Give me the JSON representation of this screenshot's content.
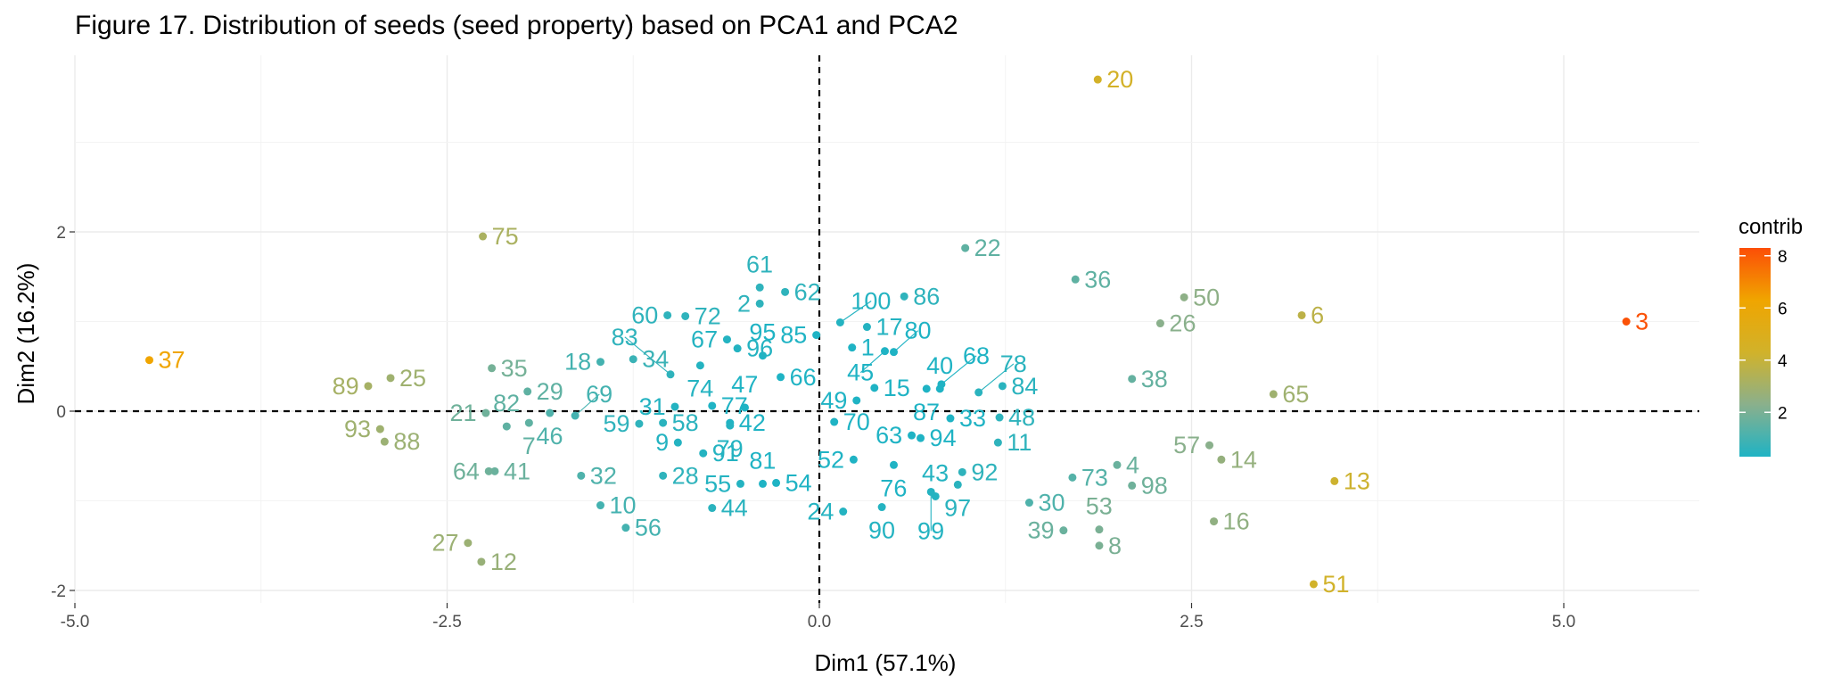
{
  "chart_data": {
    "type": "scatter",
    "title": "Figure 17. Distribution of seeds (seed property) based on PCA1 and PCA2",
    "xlabel": "Dim1 (57.1%)",
    "ylabel": "Dim2 (16.2%)",
    "xlim": [
      -5.0,
      5.9
    ],
    "ylim": [
      -2.2,
      3.6
    ],
    "xticks": [
      -5.0,
      -2.5,
      0.0,
      2.5,
      5.0
    ],
    "xtick_labels": [
      "-5.0",
      "-2.5",
      "0.0",
      "2.5",
      "5.0"
    ],
    "yticks": [
      -2,
      0,
      2
    ],
    "ytick_labels": [
      "-2",
      "0",
      "2"
    ],
    "reference_lines": {
      "x": 0,
      "y": 0,
      "style": "dashed"
    },
    "grid": true,
    "legend": {
      "title": "contrib",
      "position": "right",
      "ticks": [
        2,
        4,
        6,
        8
      ],
      "tick_labels": [
        "2",
        "4",
        "6",
        "8"
      ],
      "range": [
        0.3,
        8.3
      ],
      "colors": [
        "#1fb3c4",
        "#8ab08c",
        "#d1b22a",
        "#f0a500",
        "#fc4e07"
      ]
    },
    "points": [
      {
        "label": "1",
        "x": 0.22,
        "y": 0.71,
        "c": 0.3
      },
      {
        "label": "2",
        "x": -0.4,
        "y": 1.2,
        "c": 0.6
      },
      {
        "label": "3",
        "x": 5.42,
        "y": 1.0,
        "c": 8.2
      },
      {
        "label": "4",
        "x": 2.0,
        "y": -0.6,
        "c": 1.7
      },
      {
        "label": "6",
        "x": 3.24,
        "y": 1.07,
        "c": 3.7
      },
      {
        "label": "7",
        "x": -1.95,
        "y": -0.13,
        "c": 1.5
      },
      {
        "label": "8",
        "x": 1.88,
        "y": -1.5,
        "c": 2.0
      },
      {
        "label": "9",
        "x": -0.95,
        "y": -0.35,
        "c": 0.4
      },
      {
        "label": "10",
        "x": -1.47,
        "y": -1.05,
        "c": 1.0
      },
      {
        "label": "11",
        "x": 1.2,
        "y": -0.35,
        "c": 0.6
      },
      {
        "label": "12",
        "x": -2.27,
        "y": -1.68,
        "c": 2.7
      },
      {
        "label": "13",
        "x": 3.46,
        "y": -0.78,
        "c": 4.2
      },
      {
        "label": "14",
        "x": 2.7,
        "y": -0.54,
        "c": 2.6
      },
      {
        "label": "15",
        "x": 0.37,
        "y": 0.26,
        "c": 0.2
      },
      {
        "label": "16",
        "x": 2.65,
        "y": -1.23,
        "c": 2.5
      },
      {
        "label": "17",
        "x": 0.32,
        "y": 0.94,
        "c": 0.4
      },
      {
        "label": "18",
        "x": -1.47,
        "y": 0.55,
        "c": 1.0
      },
      {
        "label": "20",
        "x": 1.87,
        "y": 3.7,
        "c": 4.4
      },
      {
        "label": "21",
        "x": -2.24,
        "y": -0.02,
        "c": 1.8
      },
      {
        "label": "22",
        "x": 0.98,
        "y": 1.82,
        "c": 1.5
      },
      {
        "label": "24",
        "x": 0.16,
        "y": -1.12,
        "c": 0.4
      },
      {
        "label": "25",
        "x": -2.88,
        "y": 0.37,
        "c": 2.9
      },
      {
        "label": "26",
        "x": 2.29,
        "y": 0.98,
        "c": 2.3
      },
      {
        "label": "27",
        "x": -2.36,
        "y": -1.47,
        "c": 2.8
      },
      {
        "label": "28",
        "x": -1.05,
        "y": -0.72,
        "c": 0.6
      },
      {
        "label": "29",
        "x": -1.96,
        "y": 0.22,
        "c": 1.5
      },
      {
        "label": "30",
        "x": 1.41,
        "y": -1.02,
        "c": 1.2
      },
      {
        "label": "31",
        "x": -0.97,
        "y": 0.05,
        "c": 0.4
      },
      {
        "label": "32",
        "x": -1.6,
        "y": -0.72,
        "c": 1.2
      },
      {
        "label": "33",
        "x": 0.88,
        "y": -0.08,
        "c": 0.3
      },
      {
        "label": "34",
        "x": -1.25,
        "y": 0.58,
        "c": 0.8
      },
      {
        "label": "35",
        "x": -2.2,
        "y": 0.48,
        "c": 1.9
      },
      {
        "label": "36",
        "x": 1.72,
        "y": 1.47,
        "c": 1.5
      },
      {
        "label": "37",
        "x": -4.5,
        "y": 0.57,
        "c": 6.3
      },
      {
        "label": "38",
        "x": 2.1,
        "y": 0.36,
        "c": 1.6
      },
      {
        "label": "39",
        "x": 1.64,
        "y": -1.33,
        "c": 1.7
      },
      {
        "label": "40",
        "x": 0.81,
        "y": 0.25,
        "c": 0.3
      },
      {
        "label": "41",
        "x": -2.18,
        "y": -0.67,
        "c": 1.7
      },
      {
        "label": "42",
        "x": -0.6,
        "y": -0.13,
        "c": 0.2
      },
      {
        "label": "43",
        "x": 0.78,
        "y": -0.95,
        "c": 0.4
      },
      {
        "label": "44",
        "x": -0.72,
        "y": -1.08,
        "c": 0.5
      },
      {
        "label": "45",
        "x": 0.44,
        "y": 0.67,
        "c": 0.3
      },
      {
        "label": "46",
        "x": -1.81,
        "y": -0.02,
        "c": 1.2
      },
      {
        "label": "47",
        "x": -0.5,
        "y": 0.04,
        "c": 0.3
      },
      {
        "label": "48",
        "x": 1.21,
        "y": -0.07,
        "c": 0.6
      },
      {
        "label": "49",
        "x": 0.25,
        "y": 0.12,
        "c": 0.2
      },
      {
        "label": "50",
        "x": 2.45,
        "y": 1.27,
        "c": 2.4
      },
      {
        "label": "51",
        "x": 3.32,
        "y": -1.93,
        "c": 4.3
      },
      {
        "label": "52",
        "x": 0.23,
        "y": -0.54,
        "c": 0.3
      },
      {
        "label": "53",
        "x": 1.88,
        "y": -1.32,
        "c": 2.0
      },
      {
        "label": "54",
        "x": -0.29,
        "y": -0.8,
        "c": 0.3
      },
      {
        "label": "55",
        "x": -0.53,
        "y": -0.81,
        "c": 0.4
      },
      {
        "label": "56",
        "x": -1.3,
        "y": -1.3,
        "c": 1.0
      },
      {
        "label": "57",
        "x": 2.62,
        "y": -0.38,
        "c": 2.3
      },
      {
        "label": "58",
        "x": -1.05,
        "y": -0.13,
        "c": 0.5
      },
      {
        "label": "59",
        "x": -1.21,
        "y": -0.14,
        "c": 0.6
      },
      {
        "label": "60",
        "x": -1.02,
        "y": 1.07,
        "c": 0.6
      },
      {
        "label": "61",
        "x": -0.4,
        "y": 1.38,
        "c": 0.6
      },
      {
        "label": "62",
        "x": -0.23,
        "y": 1.33,
        "c": 0.6
      },
      {
        "label": "63",
        "x": 0.62,
        "y": -0.27,
        "c": 0.3
      },
      {
        "label": "64",
        "x": -2.22,
        "y": -0.67,
        "c": 1.8
      },
      {
        "label": "65",
        "x": 3.05,
        "y": 0.19,
        "c": 2.9
      },
      {
        "label": "66",
        "x": -0.26,
        "y": 0.38,
        "c": 0.3
      },
      {
        "label": "67",
        "x": -0.62,
        "y": 0.8,
        "c": 0.4
      },
      {
        "label": "68",
        "x": 0.82,
        "y": 0.3,
        "c": 0.3
      },
      {
        "label": "69",
        "x": -1.64,
        "y": -0.05,
        "c": 1.0
      },
      {
        "label": "70",
        "x": 0.1,
        "y": -0.12,
        "c": 0.3
      },
      {
        "label": "72",
        "x": -0.9,
        "y": 1.06,
        "c": 0.6
      },
      {
        "label": "73",
        "x": 1.7,
        "y": -0.74,
        "c": 1.3
      },
      {
        "label": "74",
        "x": -0.8,
        "y": 0.51,
        "c": 0.4
      },
      {
        "label": "75",
        "x": -2.26,
        "y": 1.95,
        "c": 3.2
      },
      {
        "label": "76",
        "x": 0.5,
        "y": -0.6,
        "c": 0.3
      },
      {
        "label": "77",
        "x": -0.72,
        "y": 0.06,
        "c": 0.3
      },
      {
        "label": "78",
        "x": 1.07,
        "y": 0.21,
        "c": 0.5
      },
      {
        "label": "79",
        "x": -0.6,
        "y": -0.16,
        "c": 0.4
      },
      {
        "label": "80",
        "x": 0.5,
        "y": 0.66,
        "c": 0.3
      },
      {
        "label": "81",
        "x": -0.38,
        "y": -0.81,
        "c": 0.3
      },
      {
        "label": "82",
        "x": -2.1,
        "y": -0.17,
        "c": 1.5
      },
      {
        "label": "83",
        "x": -1.0,
        "y": 0.41,
        "c": 0.6
      },
      {
        "label": "84",
        "x": 1.23,
        "y": 0.28,
        "c": 0.5
      },
      {
        "label": "85",
        "x": -0.02,
        "y": 0.85,
        "c": 0.3
      },
      {
        "label": "86",
        "x": 0.57,
        "y": 1.28,
        "c": 0.6
      },
      {
        "label": "87",
        "x": 0.72,
        "y": 0.25,
        "c": 0.3
      },
      {
        "label": "88",
        "x": -2.92,
        "y": -0.34,
        "c": 2.8
      },
      {
        "label": "89",
        "x": -3.03,
        "y": 0.28,
        "c": 3.1
      },
      {
        "label": "90",
        "x": 0.42,
        "y": -1.07,
        "c": 0.4
      },
      {
        "label": "91",
        "x": -0.78,
        "y": -0.47,
        "c": 0.4
      },
      {
        "label": "92",
        "x": 0.96,
        "y": -0.68,
        "c": 0.6
      },
      {
        "label": "93",
        "x": -2.95,
        "y": -0.2,
        "c": 2.9
      },
      {
        "label": "94",
        "x": 0.68,
        "y": -0.3,
        "c": 0.3
      },
      {
        "label": "95",
        "x": -0.38,
        "y": 0.62,
        "c": 0.3
      },
      {
        "label": "96",
        "x": -0.55,
        "y": 0.7,
        "c": 0.4
      },
      {
        "label": "97",
        "x": 0.93,
        "y": -0.82,
        "c": 0.5
      },
      {
        "label": "98",
        "x": 2.1,
        "y": -0.83,
        "c": 1.8
      },
      {
        "label": "99",
        "x": 0.75,
        "y": -0.9,
        "c": 0.4
      },
      {
        "label": "100",
        "x": 0.14,
        "y": 0.99,
        "c": 0.4
      }
    ]
  }
}
